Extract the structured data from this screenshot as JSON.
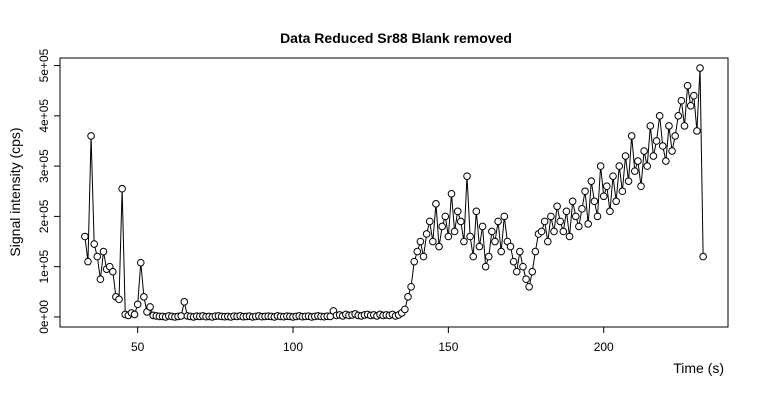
{
  "chart_data": {
    "type": "line",
    "title": "Data Reduced Sr88 Blank removed",
    "x_label": "Time (s)",
    "y_label": "Signal intensity (cps)",
    "color": "#000000",
    "markers": "open-circle",
    "x": [
      33,
      34,
      35,
      36,
      37,
      38,
      39,
      40,
      41,
      42,
      43,
      44,
      45,
      46,
      47,
      48,
      49,
      50,
      51,
      52,
      53,
      54,
      55,
      56,
      57,
      58,
      59,
      60,
      61,
      62,
      63,
      64,
      65,
      66,
      67,
      68,
      69,
      70,
      71,
      72,
      73,
      74,
      75,
      76,
      77,
      78,
      79,
      80,
      81,
      82,
      83,
      84,
      85,
      86,
      87,
      88,
      89,
      90,
      91,
      92,
      93,
      94,
      95,
      96,
      97,
      98,
      99,
      100,
      101,
      102,
      103,
      104,
      105,
      106,
      107,
      108,
      109,
      110,
      111,
      112,
      113,
      114,
      115,
      116,
      117,
      118,
      119,
      120,
      121,
      122,
      123,
      124,
      125,
      126,
      127,
      128,
      129,
      130,
      131,
      132,
      133,
      134,
      135,
      136,
      137,
      138,
      139,
      140,
      141,
      142,
      143,
      144,
      145,
      146,
      147,
      148,
      149,
      150,
      151,
      152,
      153,
      154,
      155,
      156,
      157,
      158,
      159,
      160,
      161,
      162,
      163,
      164,
      165,
      166,
      167,
      168,
      169,
      170,
      171,
      172,
      173,
      174,
      175,
      176,
      177,
      178,
      179,
      180,
      181,
      182,
      183,
      184,
      185,
      186,
      187,
      188,
      189,
      190,
      191,
      192,
      193,
      194,
      195,
      196,
      197,
      198,
      199,
      200,
      201,
      202,
      203,
      204,
      205,
      206,
      207,
      208,
      209,
      210,
      211,
      212,
      213,
      214,
      215,
      216,
      217,
      218,
      219,
      220,
      221,
      222,
      223,
      224,
      225,
      226,
      227,
      228,
      229,
      230,
      231,
      232
    ],
    "values": [
      160000,
      110000,
      360000,
      145000,
      120000,
      75000,
      130000,
      95000,
      100000,
      90000,
      40000,
      35000,
      255000,
      5000,
      3000,
      8000,
      5000,
      25000,
      108000,
      40000,
      10000,
      20000,
      3000,
      2000,
      1000,
      1000,
      0,
      2000,
      1000,
      0,
      1000,
      2000,
      30000,
      2000,
      1000,
      0,
      1500,
      1000,
      2000,
      500,
      1000,
      0,
      1500,
      2000,
      1000,
      500,
      1000,
      0,
      1500,
      1000,
      2000,
      500,
      1000,
      1500,
      0,
      1000,
      2000,
      500,
      1000,
      1500,
      1000,
      0,
      2000,
      1000,
      500,
      1500,
      1000,
      0,
      1000,
      2000,
      500,
      1000,
      1500,
      0,
      1000,
      2000,
      1000,
      500,
      1500,
      1000,
      12000,
      3000,
      4000,
      2000,
      5000,
      3000,
      4000,
      6000,
      3000,
      2000,
      4000,
      5000,
      3000,
      4000,
      2000,
      5000,
      3000,
      4000,
      3000,
      5000,
      2000,
      4000,
      8000,
      15000,
      40000,
      60000,
      110000,
      130000,
      150000,
      120000,
      165000,
      190000,
      150000,
      225000,
      140000,
      180000,
      200000,
      160000,
      245000,
      170000,
      210000,
      190000,
      150000,
      280000,
      160000,
      120000,
      210000,
      140000,
      180000,
      100000,
      120000,
      170000,
      150000,
      190000,
      130000,
      200000,
      150000,
      140000,
      110000,
      90000,
      130000,
      100000,
      75000,
      60000,
      90000,
      130000,
      165000,
      170000,
      190000,
      150000,
      200000,
      170000,
      220000,
      190000,
      170000,
      210000,
      160000,
      230000,
      200000,
      180000,
      215000,
      250000,
      185000,
      270000,
      230000,
      200000,
      300000,
      240000,
      260000,
      210000,
      280000,
      230000,
      300000,
      250000,
      320000,
      270000,
      360000,
      290000,
      310000,
      260000,
      330000,
      300000,
      380000,
      320000,
      350000,
      400000,
      340000,
      310000,
      380000,
      330000,
      360000,
      400000,
      430000,
      380000,
      460000,
      420000,
      440000,
      370000,
      495000,
      120000
    ],
    "xlim": [
      25,
      240
    ],
    "xticks": [
      50,
      100,
      150,
      200
    ],
    "ylim": [
      -20000,
      515000
    ],
    "yticks": [
      {
        "value": 0,
        "label": "0e+00"
      },
      {
        "value": 100000,
        "label": "1e+05"
      },
      {
        "value": 200000,
        "label": "2e+05"
      },
      {
        "value": 300000,
        "label": "3e+05"
      },
      {
        "value": 400000,
        "label": "4e+05"
      },
      {
        "value": 500000,
        "label": "5e+05"
      }
    ]
  }
}
